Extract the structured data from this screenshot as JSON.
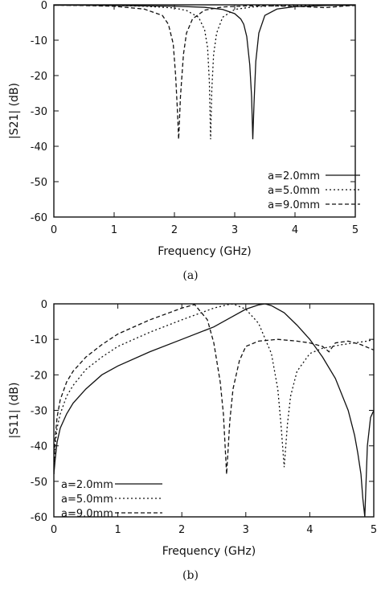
{
  "chart_data": [
    {
      "type": "line",
      "panel_label": "(a)",
      "xlabel": "Frequency (GHz)",
      "ylabel": "|S21| (dB)",
      "xlim": [
        0,
        5
      ],
      "ylim": [
        -60,
        0
      ],
      "xticks": [
        "0",
        "1",
        "2",
        "3",
        "4",
        "5"
      ],
      "yticks": [
        "0",
        "-10",
        "-20",
        "-30",
        "-40",
        "-50",
        "-60"
      ],
      "grid": false,
      "legend_position": "bottom-right",
      "series": [
        {
          "name": "a=2.0mm",
          "style": "solid",
          "x": [
            0,
            0.5,
            1.0,
            1.5,
            2.0,
            2.5,
            2.8,
            3.0,
            3.1,
            3.15,
            3.2,
            3.25,
            3.28,
            3.3,
            3.32,
            3.35,
            3.4,
            3.5,
            3.7,
            4.0,
            4.5,
            5.0
          ],
          "y": [
            -0.1,
            -0.1,
            -0.2,
            -0.3,
            -0.4,
            -0.7,
            -1.3,
            -2.5,
            -4,
            -5.5,
            -9,
            -17,
            -26,
            -38,
            -28,
            -16,
            -8,
            -3,
            -1.2,
            -0.5,
            -0.2,
            -0.1
          ]
        },
        {
          "name": "a=5.0mm",
          "style": "dotted",
          "x": [
            0,
            0.5,
            1.0,
            1.5,
            2.0,
            2.2,
            2.4,
            2.5,
            2.55,
            2.58,
            2.6,
            2.62,
            2.65,
            2.7,
            2.8,
            3.0,
            3.3,
            3.6,
            4.0,
            4.5,
            5.0
          ],
          "y": [
            -0.1,
            -0.1,
            -0.2,
            -0.4,
            -0.9,
            -1.6,
            -3.5,
            -7,
            -12,
            -22,
            -38,
            -24,
            -14,
            -8,
            -3.5,
            -1.3,
            -0.6,
            -0.3,
            -0.2,
            -0.1,
            -0.1
          ]
        },
        {
          "name": "a=9.0mm",
          "style": "dashed",
          "x": [
            0,
            0.5,
            1.0,
            1.5,
            1.8,
            1.9,
            1.98,
            2.02,
            2.05,
            2.07,
            2.1,
            2.15,
            2.2,
            2.3,
            2.5,
            2.8,
            3.2,
            3.5,
            4.0,
            4.5,
            4.85,
            5.0
          ],
          "y": [
            -0.1,
            -0.2,
            -0.4,
            -1.2,
            -3,
            -5.5,
            -11,
            -20,
            -30,
            -38,
            -26,
            -14,
            -8,
            -4,
            -1.5,
            -0.6,
            -0.3,
            -0.3,
            -0.4,
            -0.8,
            -0.3,
            -0.2
          ]
        }
      ]
    },
    {
      "type": "line",
      "panel_label": "(b)",
      "xlabel": "Frequency (GHz)",
      "ylabel": "|S11| (dB)",
      "xlim": [
        0,
        5
      ],
      "ylim": [
        -60,
        0
      ],
      "xticks": [
        "0",
        "1",
        "2",
        "3",
        "4",
        "5"
      ],
      "yticks": [
        "0",
        "-10",
        "-20",
        "-30",
        "-40",
        "-50",
        "-60"
      ],
      "grid": false,
      "legend_position": "bottom-left",
      "series": [
        {
          "name": "a=2.0mm",
          "style": "solid",
          "x": [
            0,
            0.02,
            0.05,
            0.1,
            0.2,
            0.3,
            0.5,
            0.75,
            1.0,
            1.5,
            2.0,
            2.5,
            2.8,
            3.0,
            3.2,
            3.3,
            3.4,
            3.6,
            3.8,
            4.0,
            4.2,
            4.4,
            4.6,
            4.7,
            4.75,
            4.8,
            4.83,
            4.86,
            4.88,
            4.9,
            4.95,
            5.0
          ],
          "y": [
            -48,
            -44,
            -39,
            -35,
            -31,
            -28,
            -24,
            -20,
            -17.5,
            -13.5,
            -10,
            -6.5,
            -3.5,
            -1.5,
            -0.3,
            0,
            -0.5,
            -2.5,
            -6,
            -10,
            -15,
            -21,
            -30,
            -37,
            -42,
            -48,
            -55,
            -60,
            -50,
            -40,
            -32,
            -30
          ]
        },
        {
          "name": "a=5.0mm",
          "style": "dotted",
          "x": [
            0,
            0.02,
            0.05,
            0.1,
            0.2,
            0.3,
            0.5,
            0.75,
            1.0,
            1.5,
            2.0,
            2.5,
            2.7,
            2.8,
            3.0,
            3.2,
            3.4,
            3.5,
            3.55,
            3.6,
            3.65,
            3.7,
            3.8,
            4.0,
            4.2,
            4.5,
            4.7,
            4.9,
            5.0
          ],
          "y": [
            -48,
            -40,
            -35,
            -31,
            -26,
            -23,
            -18.5,
            -15,
            -12,
            -8,
            -4.5,
            -1.2,
            -0.3,
            0,
            -1.5,
            -5.5,
            -14,
            -24,
            -34,
            -46,
            -34,
            -26,
            -19,
            -14,
            -12.5,
            -11.5,
            -11,
            -10.5,
            -10
          ]
        },
        {
          "name": "a=9.0mm",
          "style": "dashed",
          "x": [
            0,
            0.02,
            0.05,
            0.1,
            0.2,
            0.3,
            0.5,
            0.75,
            1.0,
            1.5,
            2.0,
            2.2,
            2.4,
            2.5,
            2.6,
            2.65,
            2.7,
            2.75,
            2.8,
            2.9,
            3.0,
            3.2,
            3.5,
            3.8,
            4.0,
            4.2,
            4.3,
            4.4,
            4.6,
            4.8,
            5.0
          ],
          "y": [
            -46,
            -38,
            -32,
            -27,
            -22,
            -19,
            -15,
            -11.5,
            -8.5,
            -4.5,
            -1.2,
            -0.2,
            -4.5,
            -11,
            -22,
            -31,
            -48,
            -33,
            -24,
            -16,
            -12,
            -10.5,
            -10,
            -10.5,
            -11,
            -12,
            -13.5,
            -11,
            -10.5,
            -11.5,
            -13
          ]
        }
      ]
    }
  ]
}
